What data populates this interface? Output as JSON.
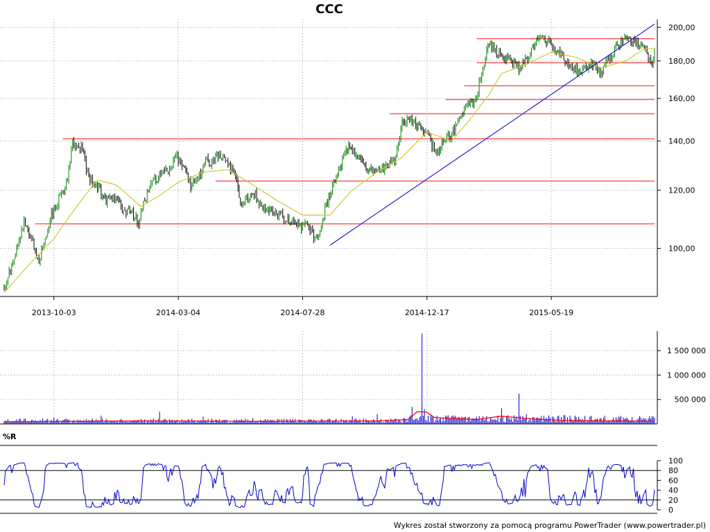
{
  "app": {
    "footer": "Wykres został stworzony za pomocą programu PowerTrader (www.powertrader.pl)"
  },
  "chart_data": [
    {
      "type": "candlestick",
      "title": "CCC",
      "xlabel": "",
      "ylabel": "",
      "grid": true,
      "scale": "log",
      "ylim": [
        86,
        205
      ],
      "x_ticks": [
        "2013-10-03",
        "2014-03-04",
        "2014-07-28",
        "2014-12-17",
        "2015-05-19"
      ],
      "x_tick_index": [
        40,
        140,
        240,
        340,
        440
      ],
      "y_ticks": [
        "100,00",
        "120,00",
        "140,00",
        "160,00",
        "180,00",
        "200,00"
      ],
      "y_tick_values": [
        100,
        120,
        140,
        160,
        180,
        200
      ],
      "colors": {
        "up": "#008000",
        "down": "#000000",
        "ma": "#cccc33",
        "support": "#ff5a5a",
        "trend": "#2020cc"
      },
      "close_path": [
        [
          0,
          89
        ],
        [
          5,
          94
        ],
        [
          10,
          99
        ],
        [
          16,
          109
        ],
        [
          22,
          103
        ],
        [
          28,
          96
        ],
        [
          33,
          103
        ],
        [
          38,
          111
        ],
        [
          45,
          118
        ],
        [
          50,
          122
        ],
        [
          55,
          139
        ],
        [
          62,
          137
        ],
        [
          68,
          125
        ],
        [
          75,
          121
        ],
        [
          82,
          116
        ],
        [
          88,
          118
        ],
        [
          95,
          113
        ],
        [
          102,
          112
        ],
        [
          108,
          108
        ],
        [
          114,
          118
        ],
        [
          120,
          123
        ],
        [
          126,
          127
        ],
        [
          132,
          128
        ],
        [
          138,
          133
        ],
        [
          144,
          130
        ],
        [
          150,
          122
        ],
        [
          156,
          125
        ],
        [
          162,
          132
        ],
        [
          168,
          131
        ],
        [
          174,
          134
        ],
        [
          180,
          130
        ],
        [
          186,
          126
        ],
        [
          190,
          115
        ],
        [
          196,
          117
        ],
        [
          202,
          118
        ],
        [
          208,
          114
        ],
        [
          214,
          112
        ],
        [
          220,
          111
        ],
        [
          226,
          110
        ],
        [
          232,
          109
        ],
        [
          238,
          107
        ],
        [
          244,
          109
        ],
        [
          249,
          103
        ],
        [
          254,
          106
        ],
        [
          260,
          116
        ],
        [
          266,
          124
        ],
        [
          272,
          131
        ],
        [
          278,
          139
        ],
        [
          284,
          133
        ],
        [
          290,
          130
        ],
        [
          296,
          127
        ],
        [
          302,
          128
        ],
        [
          308,
          129
        ],
        [
          314,
          132
        ],
        [
          320,
          148
        ],
        [
          326,
          150
        ],
        [
          332,
          146
        ],
        [
          338,
          145
        ],
        [
          344,
          138
        ],
        [
          350,
          136
        ],
        [
          354,
          140
        ],
        [
          360,
          143
        ],
        [
          366,
          149
        ],
        [
          372,
          157
        ],
        [
          378,
          158
        ],
        [
          382,
          167
        ],
        [
          386,
          178
        ],
        [
          390,
          190
        ],
        [
          396,
          186
        ],
        [
          402,
          182
        ],
        [
          408,
          179
        ],
        [
          414,
          176
        ],
        [
          420,
          181
        ],
        [
          426,
          188
        ],
        [
          432,
          195
        ],
        [
          438,
          191
        ],
        [
          444,
          185
        ],
        [
          450,
          182
        ],
        [
          456,
          176
        ],
        [
          462,
          174
        ],
        [
          468,
          176
        ],
        [
          474,
          178
        ],
        [
          480,
          172
        ],
        [
          486,
          181
        ],
        [
          492,
          188
        ],
        [
          498,
          192
        ],
        [
          504,
          192
        ],
        [
          510,
          190
        ],
        [
          516,
          188
        ],
        [
          520,
          176
        ],
        [
          523,
          183
        ]
      ],
      "series": [
        {
          "type": "moving_average",
          "values": [
            [
              0,
              87
            ],
            [
              20,
              95
            ],
            [
              40,
              103
            ],
            [
              60,
              115
            ],
            [
              75,
              124
            ],
            [
              90,
              122
            ],
            [
              110,
              114
            ],
            [
              125,
              118
            ],
            [
              140,
              123
            ],
            [
              160,
              127
            ],
            [
              180,
              128
            ],
            [
              200,
              122
            ],
            [
              220,
              116
            ],
            [
              240,
              111
            ],
            [
              262,
              111
            ],
            [
              280,
              120
            ],
            [
              300,
              127
            ],
            [
              320,
              133
            ],
            [
              340,
              144
            ],
            [
              360,
              140
            ],
            [
              375,
              150
            ],
            [
              390,
              162
            ],
            [
              400,
              173
            ],
            [
              420,
              178
            ],
            [
              440,
              185
            ],
            [
              460,
              182
            ],
            [
              480,
              176
            ],
            [
              500,
              180
            ],
            [
              515,
              187
            ],
            [
              523,
              187
            ]
          ]
        }
      ],
      "support_lines": [
        {
          "value": 108,
          "from": 25,
          "to": 523
        },
        {
          "value": 123.5,
          "from": 170,
          "to": 523
        },
        {
          "value": 141,
          "from": 47,
          "to": 523
        },
        {
          "value": 152.5,
          "from": 310,
          "to": 523
        },
        {
          "value": 159.5,
          "from": 355,
          "to": 523
        },
        {
          "value": 166.5,
          "from": 370,
          "to": 523
        },
        {
          "value": 179,
          "from": 380,
          "to": 523
        },
        {
          "value": 193,
          "from": 380,
          "to": 523
        }
      ],
      "trend_line": {
        "from": [
          262,
          101
        ],
        "to": [
          523,
          202
        ]
      }
    },
    {
      "type": "bar",
      "title": "",
      "ylim": [
        0,
        1900000
      ],
      "y_ticks": [
        "500 000",
        "1 000 000",
        "1 500 000"
      ],
      "y_tick_values": [
        500000,
        1000000,
        1500000
      ],
      "colors": {
        "bar": "#0000cc",
        "ma": "#ff0000"
      },
      "base_level": 75000,
      "spikes": [
        [
          40,
          130000
        ],
        [
          78,
          170000
        ],
        [
          125,
          250000
        ],
        [
          160,
          150000
        ],
        [
          200,
          120000
        ],
        [
          280,
          160000
        ],
        [
          300,
          200000
        ],
        [
          328,
          350000
        ],
        [
          336,
          1850000
        ],
        [
          338,
          300000
        ],
        [
          360,
          160000
        ],
        [
          400,
          320000
        ],
        [
          414,
          620000
        ],
        [
          420,
          200000
        ],
        [
          460,
          140000
        ],
        [
          500,
          120000
        ]
      ],
      "ma_path": [
        [
          0,
          45000
        ],
        [
          100,
          60000
        ],
        [
          200,
          55000
        ],
        [
          300,
          60000
        ],
        [
          325,
          90000
        ],
        [
          332,
          250000
        ],
        [
          340,
          240000
        ],
        [
          346,
          130000
        ],
        [
          380,
          90000
        ],
        [
          400,
          160000
        ],
        [
          420,
          110000
        ],
        [
          450,
          70000
        ],
        [
          523,
          55000
        ]
      ]
    },
    {
      "type": "line",
      "title": "%R",
      "ylim": [
        0,
        100
      ],
      "y_ticks": [
        "0",
        "20",
        "40",
        "60",
        "80",
        "100"
      ],
      "y_tick_values": [
        0,
        20,
        40,
        60,
        80,
        100
      ],
      "ref_lines": [
        20,
        80
      ],
      "colors": {
        "line": "#0000cc"
      }
    }
  ]
}
